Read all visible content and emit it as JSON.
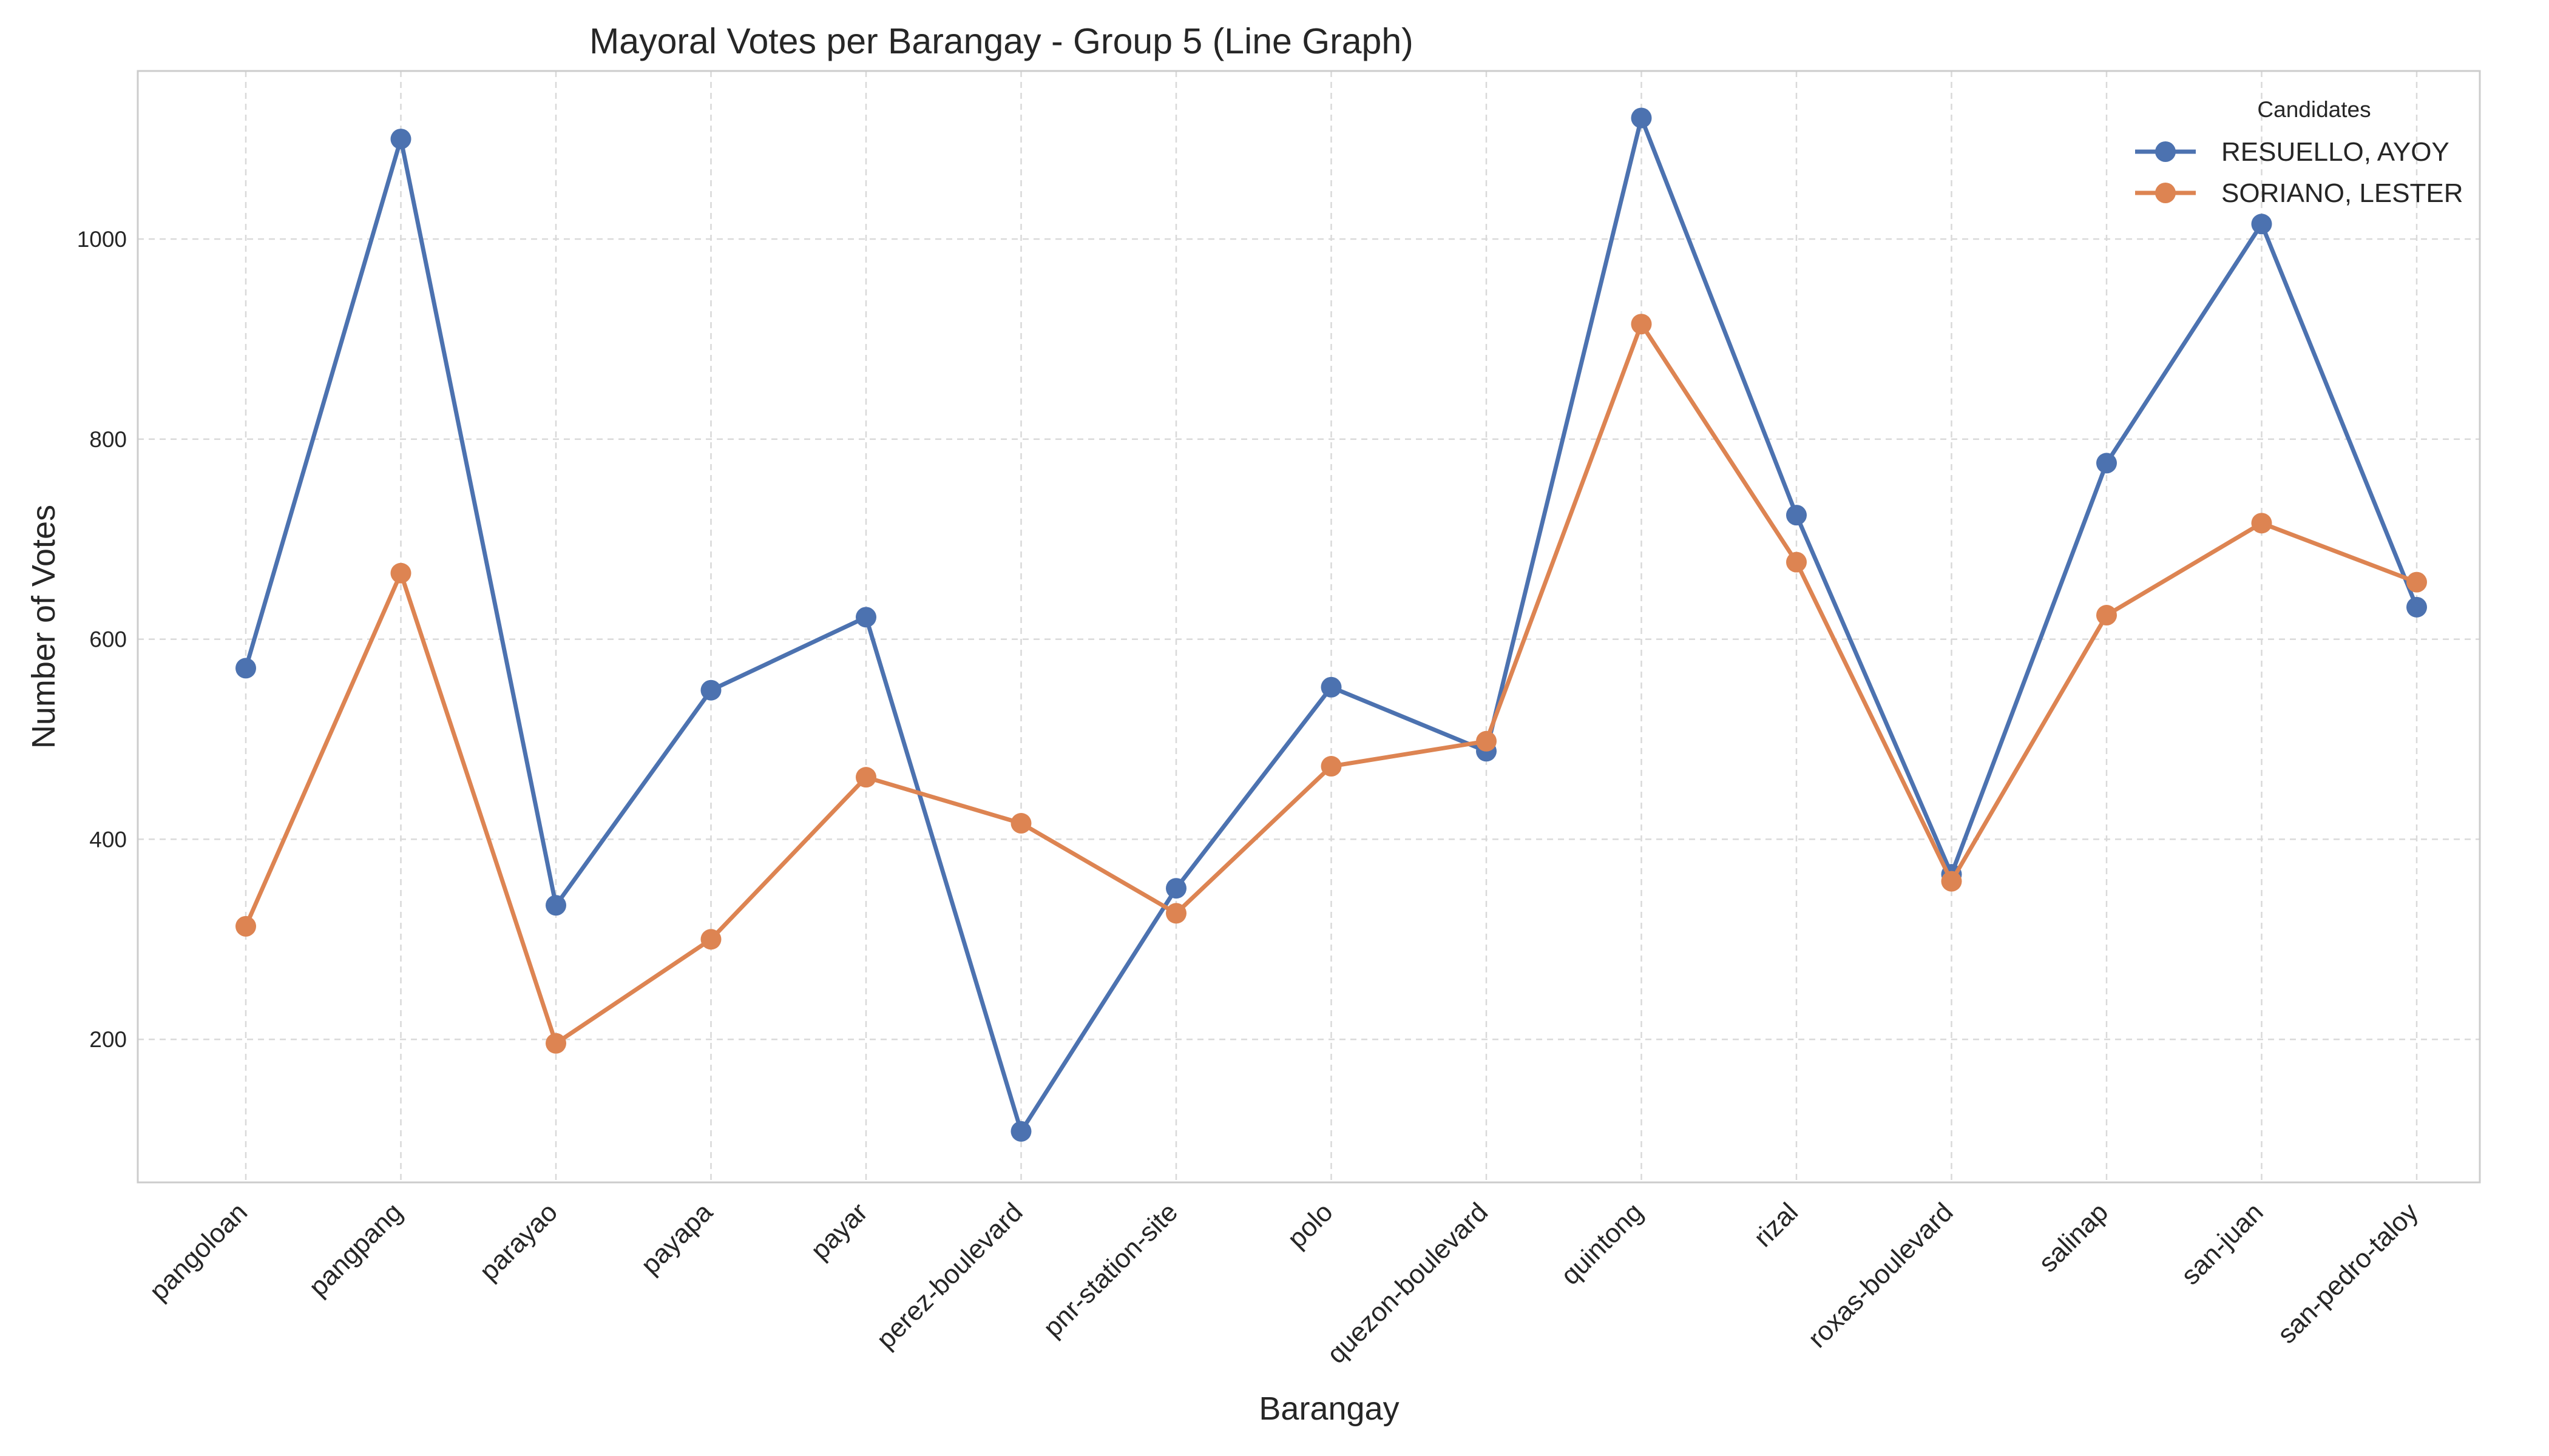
{
  "chart_data": {
    "type": "line",
    "title": "Mayoral Votes per Barangay - Group 5 (Line Graph)",
    "xlabel": "Barangay",
    "ylabel": "Number of Votes",
    "categories": [
      "pangoloan",
      "pangpang",
      "parayao",
      "payapa",
      "payar",
      "perez-boulevard",
      "pnr-station-site",
      "polo",
      "quezon-boulevard",
      "quintong",
      "rizal",
      "roxas-boulevard",
      "salinap",
      "san-juan",
      "san-pedro-taloy"
    ],
    "ylim": [
      57,
      1168
    ],
    "yticks": [
      200,
      400,
      600,
      800,
      1000
    ],
    "grid": true,
    "legend": {
      "title": "Candidates",
      "placement": "top-right"
    },
    "series": [
      {
        "name": "RESUELLO, AYOY",
        "color": "#4c72b0",
        "values": [
          571,
          1100,
          334,
          549,
          622,
          108,
          351,
          552,
          488,
          1121,
          724,
          365,
          776,
          1015,
          632
        ]
      },
      {
        "name": "SORIANO, LESTER",
        "color": "#dd8452",
        "values": [
          313,
          666,
          196,
          300,
          462,
          416,
          326,
          473,
          498,
          915,
          677,
          358,
          624,
          716,
          657
        ]
      }
    ]
  }
}
